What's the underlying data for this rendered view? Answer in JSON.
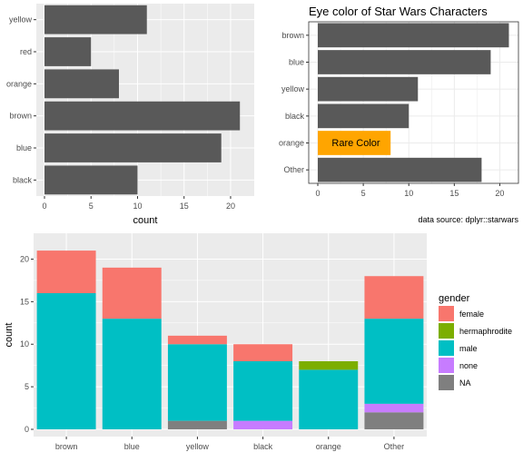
{
  "chart_data": [
    {
      "type": "bar",
      "orientation": "horizontal",
      "categories": [
        "yellow",
        "red",
        "orange",
        "brown",
        "blue",
        "black"
      ],
      "values": [
        11,
        5,
        8,
        21,
        19,
        10
      ],
      "title": "",
      "xlabel": "count",
      "ylabel": "",
      "xlim": [
        0,
        22
      ],
      "xticks": [
        0,
        5,
        10,
        15,
        20
      ],
      "grid": true,
      "colors": {
        "bar": "#595959",
        "panel": "#ebebeb"
      }
    },
    {
      "type": "bar",
      "orientation": "horizontal",
      "categories": [
        "brown",
        "blue",
        "yellow",
        "black",
        "orange",
        "Other"
      ],
      "values": [
        21,
        19,
        11,
        10,
        8,
        18
      ],
      "title": "Eye color of Star Wars Characters",
      "caption": "data source: dplyr::starwars",
      "annotation": "Rare Color",
      "highlight": {
        "category": "orange",
        "color": "#ffa500"
      },
      "xlabel": "",
      "ylabel": "",
      "xlim": [
        0,
        21.5
      ],
      "xticks": [
        0,
        5,
        10,
        15,
        20
      ],
      "grid": true,
      "colors": {
        "bar": "#595959",
        "panel": "#ffffff",
        "grid": "#ebebeb"
      }
    },
    {
      "type": "bar",
      "stacked": true,
      "categories": [
        "brown",
        "blue",
        "yellow",
        "black",
        "orange",
        "Other"
      ],
      "series": [
        {
          "name": "female",
          "color": "#f8766d",
          "values": [
            5,
            6,
            1,
            2,
            0,
            5
          ]
        },
        {
          "name": "hermaphrodite",
          "color": "#7cae00",
          "values": [
            0,
            0,
            0,
            0,
            1,
            0
          ]
        },
        {
          "name": "male",
          "color": "#00bfc4",
          "values": [
            16,
            13,
            9,
            7,
            7,
            10
          ]
        },
        {
          "name": "none",
          "color": "#c77cff",
          "values": [
            0,
            0,
            0,
            1,
            0,
            1
          ]
        },
        {
          "name": "NA",
          "color": "#7f7f7f",
          "values": [
            0,
            0,
            1,
            0,
            0,
            2
          ]
        }
      ],
      "legend": {
        "title": "gender",
        "position": "right"
      },
      "xlabel": "",
      "ylabel": "count",
      "ylim": [
        0,
        22
      ],
      "yticks": [
        0,
        5,
        10,
        15,
        20
      ],
      "grid": true,
      "colors": {
        "panel": "#ebebeb"
      }
    }
  ]
}
